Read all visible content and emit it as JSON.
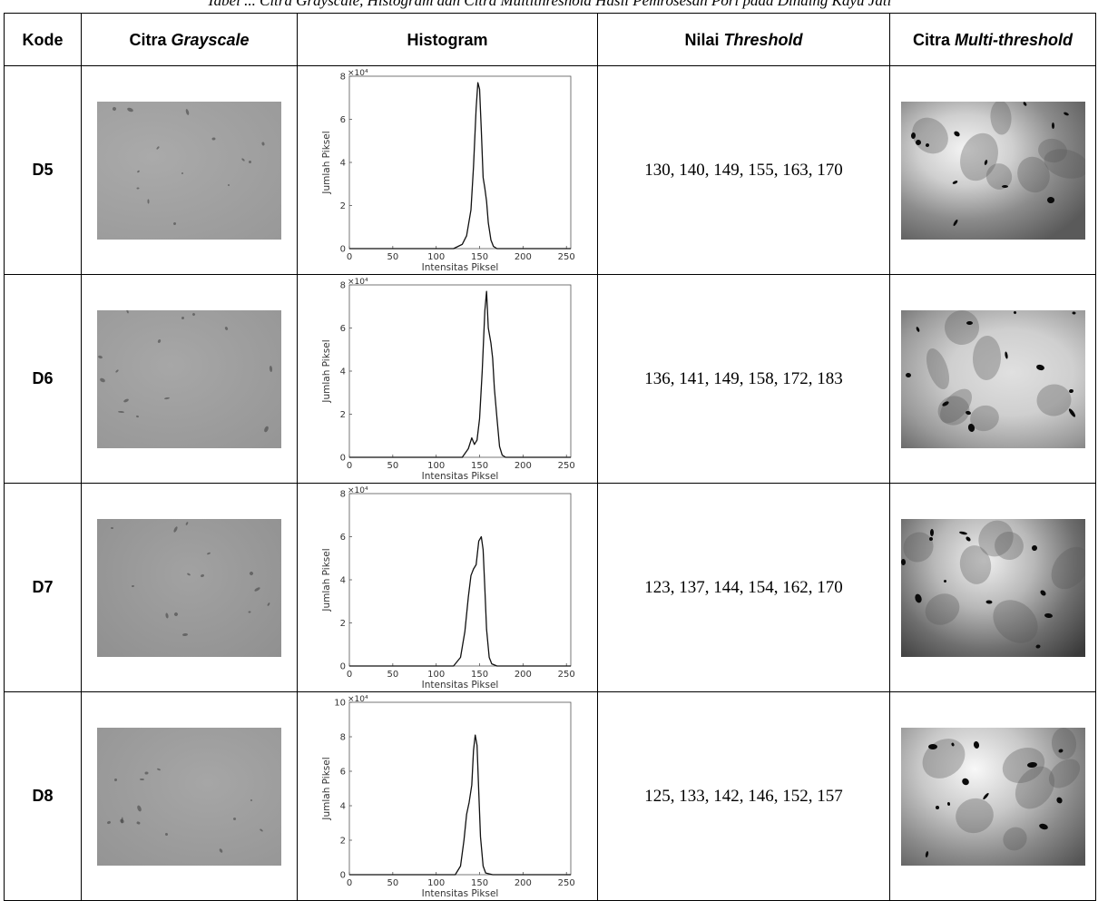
{
  "caption": "Tabel ... Citra Grayscale, Histogram dan Citra Multithreshold Hasil Pemrosesan Pori pada Dinding Kayu Jati",
  "headers": {
    "kode": "Kode",
    "grayscale_prefix": "Citra ",
    "grayscale_italic": "Grayscale",
    "histogram": "Histogram",
    "nilai_prefix": "Nilai ",
    "nilai_italic": "Threshold",
    "multi_prefix": "Citra ",
    "multi_italic": "Multi-threshold"
  },
  "rows": [
    {
      "kode": "D5",
      "threshold": "130, 140, 149, 155, 163, 170"
    },
    {
      "kode": "D6",
      "threshold": "136, 141, 149, 158, 172, 183"
    },
    {
      "kode": "D7",
      "threshold": "123, 137, 144, 154, 162, 170"
    },
    {
      "kode": "D8",
      "threshold": "125, 133, 142, 146, 152, 157"
    }
  ],
  "chart_data": [
    {
      "type": "line",
      "xlabel": "Intensitas Piksel",
      "ylabel": "Jumlah Piksel",
      "scale_label": "×10⁴",
      "xlim": [
        0,
        255
      ],
      "ylim": [
        0,
        8
      ],
      "xticks": [
        0,
        50,
        100,
        150,
        200,
        250
      ],
      "yticks": [
        0,
        2,
        4,
        6,
        8
      ],
      "x": [
        0,
        120,
        130,
        135,
        140,
        143,
        146,
        148,
        150,
        152,
        154,
        156,
        158,
        160,
        163,
        166,
        170,
        255
      ],
      "y": [
        0,
        0,
        0.2,
        0.6,
        1.8,
        3.8,
        6.5,
        7.7,
        7.4,
        5.5,
        3.3,
        2.8,
        2.2,
        1.2,
        0.4,
        0.1,
        0,
        0
      ]
    },
    {
      "type": "line",
      "xlabel": "Intensitas Piksel",
      "ylabel": "Jumlah Piksel",
      "scale_label": "×10⁴",
      "xlim": [
        0,
        255
      ],
      "ylim": [
        0,
        8
      ],
      "xticks": [
        0,
        50,
        100,
        150,
        200,
        250
      ],
      "yticks": [
        0,
        2,
        4,
        6,
        8
      ],
      "x": [
        0,
        130,
        137,
        141,
        144,
        147,
        150,
        153,
        156,
        158,
        160,
        163,
        165,
        167,
        170,
        173,
        176,
        180,
        255
      ],
      "y": [
        0,
        0,
        0.4,
        0.9,
        0.6,
        0.8,
        1.8,
        4.0,
        6.8,
        7.7,
        6.0,
        5.3,
        4.6,
        3.2,
        1.8,
        0.5,
        0.1,
        0,
        0
      ]
    },
    {
      "type": "line",
      "xlabel": "Intensitas Piksel",
      "ylabel": "Jumlah Piksel",
      "scale_label": "×10⁴",
      "xlim": [
        0,
        255
      ],
      "ylim": [
        0,
        8
      ],
      "xticks": [
        0,
        50,
        100,
        150,
        200,
        250
      ],
      "yticks": [
        0,
        2,
        4,
        6,
        8
      ],
      "x": [
        0,
        120,
        128,
        133,
        137,
        140,
        143,
        146,
        149,
        152,
        154,
        156,
        158,
        161,
        164,
        170,
        255
      ],
      "y": [
        0,
        0,
        0.4,
        1.6,
        3.2,
        4.2,
        4.5,
        4.7,
        5.8,
        6.0,
        5.4,
        3.6,
        1.7,
        0.4,
        0.1,
        0,
        0
      ]
    },
    {
      "type": "line",
      "xlabel": "Intensitas Piksel",
      "ylabel": "Jumlah Piksel",
      "scale_label": "×10⁴",
      "xlim": [
        0,
        255
      ],
      "ylim": [
        0,
        10
      ],
      "xticks": [
        0,
        50,
        100,
        150,
        200,
        250
      ],
      "yticks": [
        0,
        2,
        4,
        6,
        8,
        10
      ],
      "x": [
        0,
        122,
        128,
        132,
        135,
        138,
        141,
        143,
        145,
        147,
        149,
        151,
        154,
        157,
        165,
        255
      ],
      "y": [
        0,
        0,
        0.5,
        2.0,
        3.5,
        4.2,
        5.2,
        7.2,
        8.1,
        7.5,
        4.8,
        2.2,
        0.5,
        0.1,
        0,
        0
      ]
    }
  ]
}
